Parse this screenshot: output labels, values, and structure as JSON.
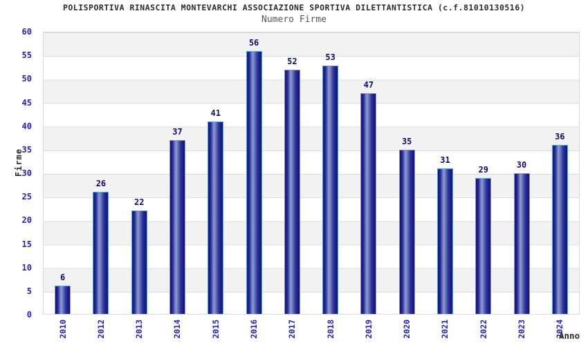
{
  "chart_data": {
    "type": "bar",
    "title": "POLISPORTIVA RINASCITA MONTEVARCHI ASSOCIAZIONE SPORTIVA DILETTANTISTICA (c.f.81010130516)",
    "subtitle": "Numero Firme",
    "xlabel": "Anno",
    "ylabel": "Firme",
    "categories": [
      "2010",
      "2012",
      "2013",
      "2014",
      "2015",
      "2016",
      "2017",
      "2018",
      "2019",
      "2020",
      "2021",
      "2022",
      "2023",
      "2024"
    ],
    "values": [
      6,
      26,
      22,
      37,
      41,
      56,
      52,
      53,
      47,
      35,
      31,
      29,
      30,
      36
    ],
    "ylim": [
      0,
      60
    ],
    "ytick_step": 5,
    "grid": "horizontal alternating bands every 5 units, gray band at top (55-60), gridline at each tick",
    "legend": "none",
    "bar_labels": "value shown above each bar",
    "x_tick_rotation": "vertical, reading bottom to top",
    "colors": {
      "bar_dark": "#12127a",
      "bar_highlight": "#8f9dd2",
      "bar_border": "#63a4f0",
      "tick_label": "#2222cc",
      "value_label": "#0d0d70",
      "title_text": "#2b2b2b",
      "subtitle_text": "#555555",
      "band_gray": "#f2f2f2",
      "band_white": "#ffffff",
      "plot_border": "#d9d9d9"
    }
  }
}
